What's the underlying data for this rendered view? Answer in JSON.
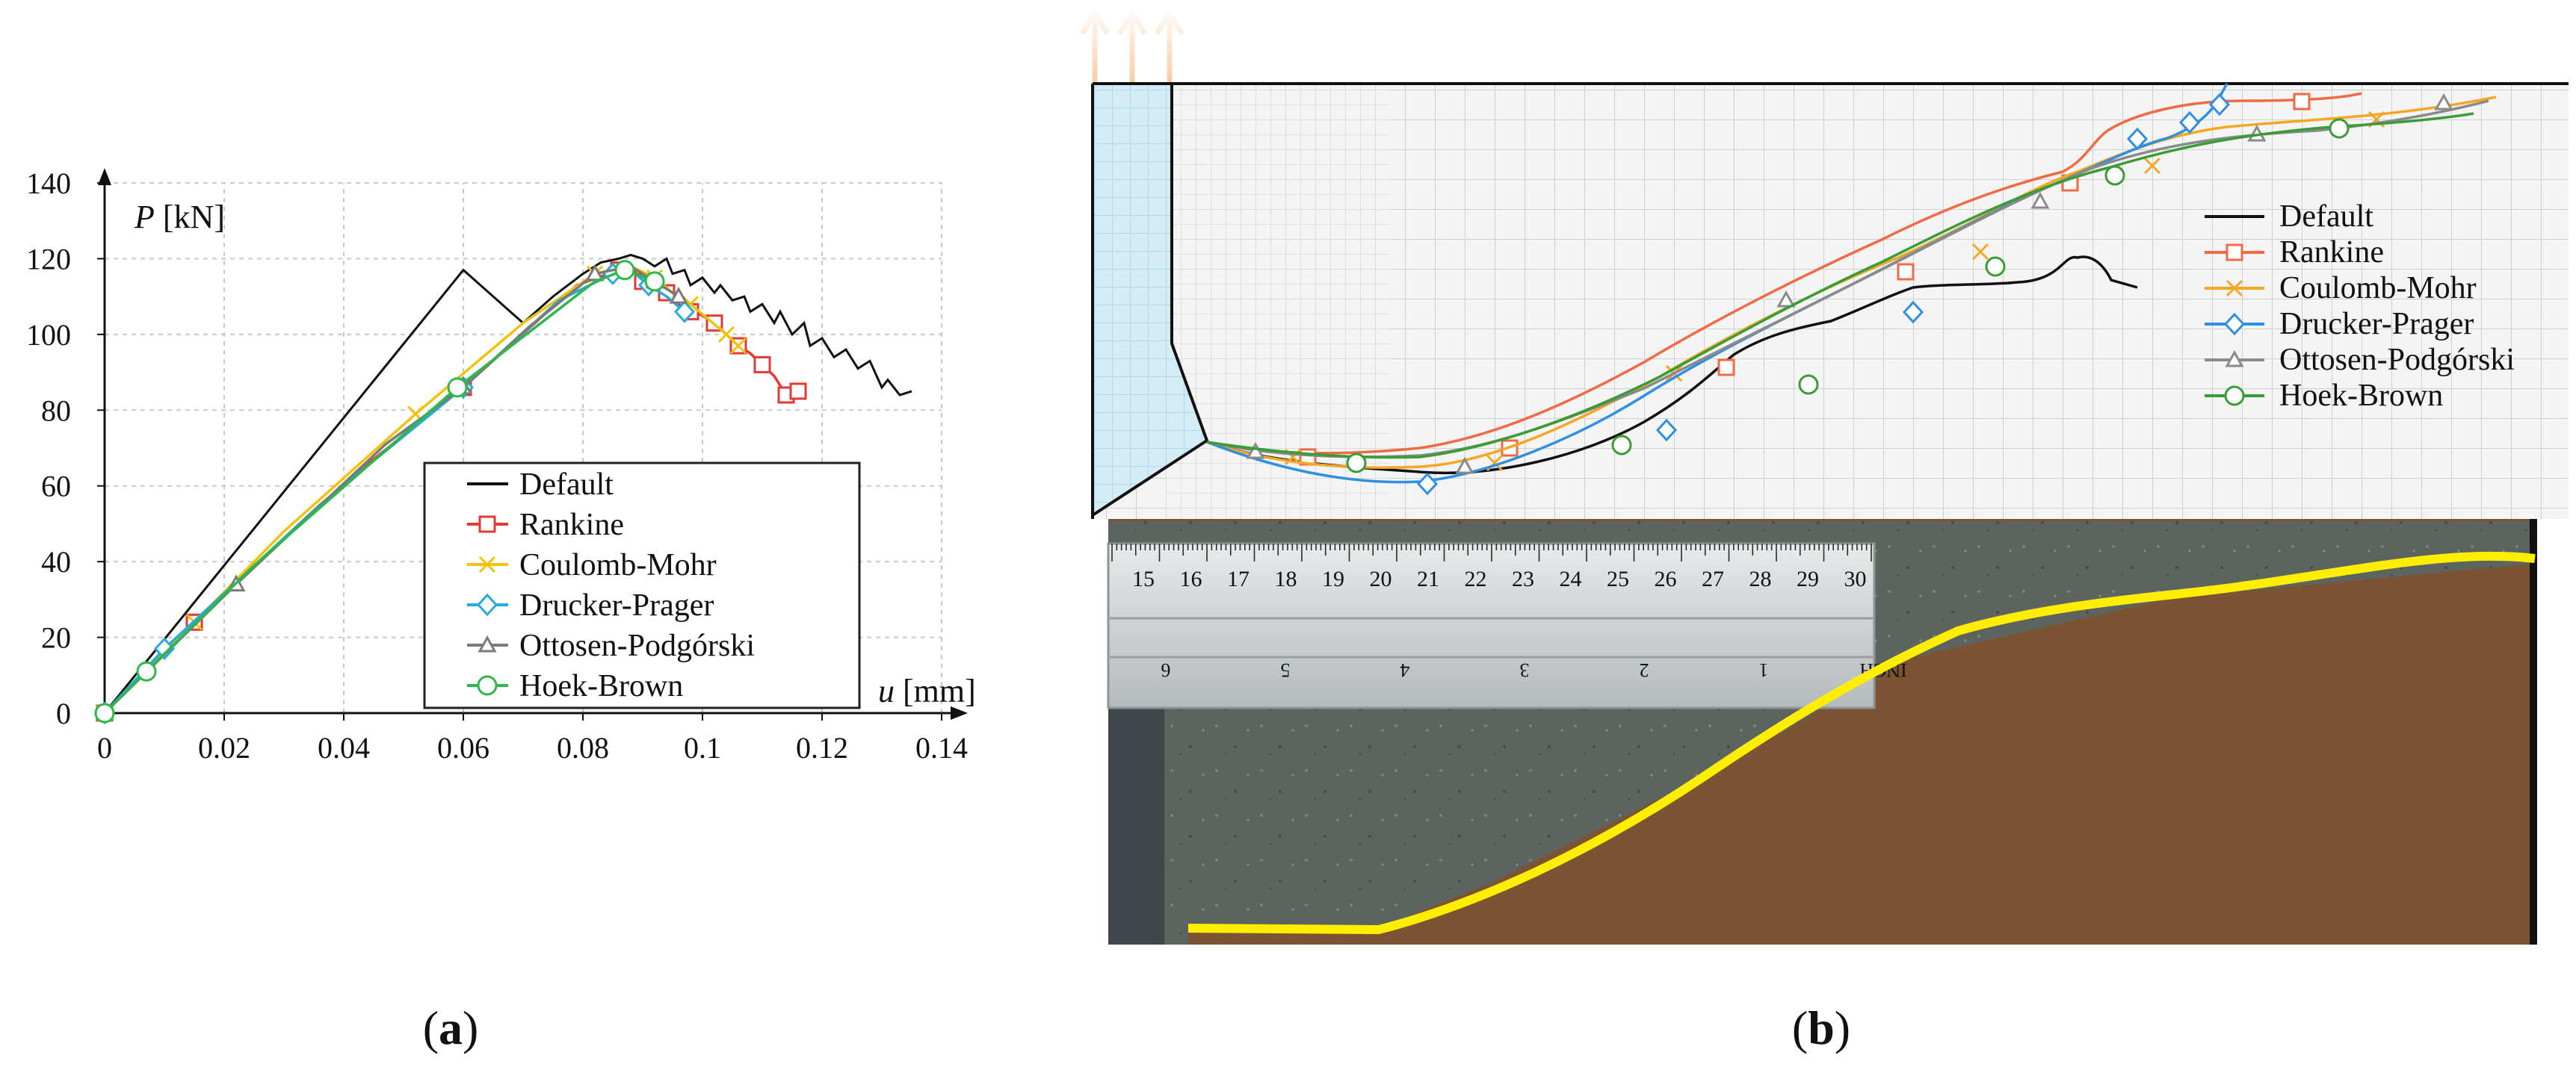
{
  "panels": {
    "a": {
      "caption_letter": "a",
      "caption_open": "(",
      "caption_close": ")"
    },
    "b": {
      "caption_letter": "b",
      "caption_open": "(",
      "caption_close": ")"
    }
  },
  "colors": {
    "default": "#111111",
    "rankine": "#e53935",
    "coulomb_mohr": "#f4c20d",
    "drucker_prager": "#29a9e0",
    "ottosen": "#7a7a7a",
    "hoek_brown": "#2eb84b",
    "b_rankine": "#f06a45",
    "b_coulomb": "#f5a623",
    "b_drucker": "#2f8fe0",
    "b_ottosen": "#8a8a8a",
    "b_hoek": "#3a9c35",
    "crack_yellow": "#ffee00"
  },
  "chart_data": [
    {
      "id": "a",
      "type": "line",
      "title": "",
      "xlabel_symbol": "u",
      "xlabel_unit": "[mm]",
      "ylabel_symbol": "P",
      "ylabel_unit": "[kN]",
      "xlim": [
        0,
        0.14
      ],
      "ylim": [
        0,
        140
      ],
      "xticks": [
        "0",
        "0.02",
        "0.04",
        "0.06",
        "0.08",
        "0.1",
        "0.12",
        "0.14"
      ],
      "yticks": [
        "0",
        "20",
        "40",
        "60",
        "80",
        "100",
        "120",
        "140"
      ],
      "legend_position": "lower-right",
      "series": [
        {
          "name": "Default",
          "key": "default",
          "marker": "none",
          "x": [
            0,
            0.02,
            0.04,
            0.06,
            0.07,
            0.075,
            0.08,
            0.083,
            0.086,
            0.088,
            0.09,
            0.092,
            0.094,
            0.095,
            0.097,
            0.098,
            0.1,
            0.102,
            0.103,
            0.105,
            0.107,
            0.108,
            0.11,
            0.112,
            0.113,
            0.115,
            0.117,
            0.118,
            0.12,
            0.122,
            0.124,
            0.126,
            0.128,
            0.13,
            0.131,
            0.133,
            0.135
          ],
          "y": [
            0,
            39,
            78,
            117,
            103,
            110,
            116,
            119,
            120,
            121,
            120,
            118,
            120,
            116,
            117,
            113,
            115,
            111,
            113,
            109,
            110,
            106,
            108,
            103,
            106,
            100,
            103,
            97,
            99,
            94,
            96,
            91,
            93,
            86,
            88,
            84,
            85
          ]
        },
        {
          "name": "Rankine",
          "key": "rankine",
          "marker": "square",
          "x": [
            0,
            0.015,
            0.041,
            0.06,
            0.079,
            0.086,
            0.088,
            0.09,
            0.092,
            0.094,
            0.096,
            0.098,
            0.1,
            0.102,
            0.104,
            0.106,
            0.108,
            0.11,
            0.112,
            0.114,
            0.116
          ],
          "y": [
            0,
            24,
            62,
            86,
            113,
            117,
            118,
            114,
            112,
            111,
            108,
            106,
            105,
            103,
            100,
            97,
            95,
            92,
            89,
            84,
            85
          ]
        },
        {
          "name": "Coulomb-Mohr",
          "key": "coulomb_mohr",
          "marker": "x",
          "x": [
            0,
            0.015,
            0.03,
            0.052,
            0.07,
            0.082,
            0.088,
            0.092,
            0.095,
            0.098,
            0.101,
            0.104,
            0.106
          ],
          "y": [
            0,
            24,
            48,
            79,
            103,
            116,
            118,
            115,
            111,
            108,
            104,
            100,
            97
          ]
        },
        {
          "name": "Drucker-Prager",
          "key": "drucker_prager",
          "marker": "diamond",
          "x": [
            0,
            0.01,
            0.036,
            0.06,
            0.076,
            0.085,
            0.088,
            0.091,
            0.094,
            0.097
          ],
          "y": [
            0,
            17,
            55,
            86,
            109,
            116,
            117,
            113,
            110,
            106
          ]
        },
        {
          "name": "Ottosen-Podgórski",
          "key": "ottosen",
          "marker": "triangle",
          "x": [
            0,
            0.022,
            0.047,
            0.06,
            0.071,
            0.082,
            0.088,
            0.092,
            0.096
          ],
          "y": [
            0,
            34,
            71,
            86,
            102,
            116,
            118,
            114,
            110
          ]
        },
        {
          "name": "Hoek-Brown",
          "key": "hoek_brown",
          "marker": "circle",
          "x": [
            0,
            0.007,
            0.025,
            0.059,
            0.082,
            0.087,
            0.092
          ],
          "y": [
            0,
            11,
            39,
            86,
            114,
            117,
            114
          ]
        }
      ]
    },
    {
      "id": "b",
      "type": "line",
      "title": "",
      "legend_position": "right",
      "series": [
        {
          "name": "Default",
          "key": "default",
          "marker": "none"
        },
        {
          "name": "Rankine",
          "key": "b_rankine",
          "marker": "square"
        },
        {
          "name": "Coulomb-Mohr",
          "key": "b_coulomb",
          "marker": "x"
        },
        {
          "name": "Drucker-Prager",
          "key": "b_drucker",
          "marker": "diamond"
        },
        {
          "name": "Ottosen-Podgórski",
          "key": "b_ottosen",
          "marker": "triangle"
        },
        {
          "name": "Hoek-Brown",
          "key": "b_hoek",
          "marker": "circle"
        }
      ]
    }
  ],
  "ruler": {
    "top_numbers": [
      "15",
      "16",
      "17",
      "18",
      "19",
      "20",
      "21",
      "22",
      "23",
      "24",
      "25",
      "26",
      "27",
      "28",
      "29",
      "30"
    ],
    "bottom_numbers": [
      "6",
      "5",
      "4",
      "3",
      "2",
      "1",
      "INCH"
    ]
  }
}
